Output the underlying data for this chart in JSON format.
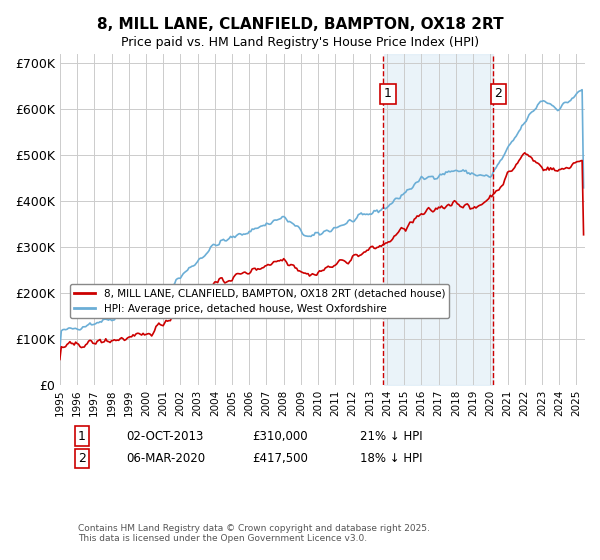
{
  "title": "8, MILL LANE, CLANFIELD, BAMPTON, OX18 2RT",
  "subtitle": "Price paid vs. HM Land Registry's House Price Index (HPI)",
  "xlabel": "",
  "ylabel": "",
  "ylim": [
    0,
    720000
  ],
  "yticks": [
    0,
    100000,
    200000,
    300000,
    400000,
    500000,
    600000,
    700000
  ],
  "ytick_labels": [
    "£0",
    "£100K",
    "£200K",
    "£300K",
    "£400K",
    "£500K",
    "£600K",
    "£700K"
  ],
  "hpi_color": "#6baed6",
  "price_color": "#cc0000",
  "vline_color": "#cc0000",
  "shade_color": "#d6e8f5",
  "transaction1": {
    "date": "02-OCT-2013",
    "price": 310000,
    "pct": "21%",
    "label": "1"
  },
  "transaction2": {
    "date": "06-MAR-2020",
    "price": 417500,
    "pct": "18%",
    "label": "2"
  },
  "legend_line1": "8, MILL LANE, CLANFIELD, BAMPTON, OX18 2RT (detached house)",
  "legend_line2": "HPI: Average price, detached house, West Oxfordshire",
  "footer": "Contains HM Land Registry data © Crown copyright and database right 2025.\nThis data is licensed under the Open Government Licence v3.0.",
  "background_color": "#ffffff",
  "grid_color": "#cccccc"
}
